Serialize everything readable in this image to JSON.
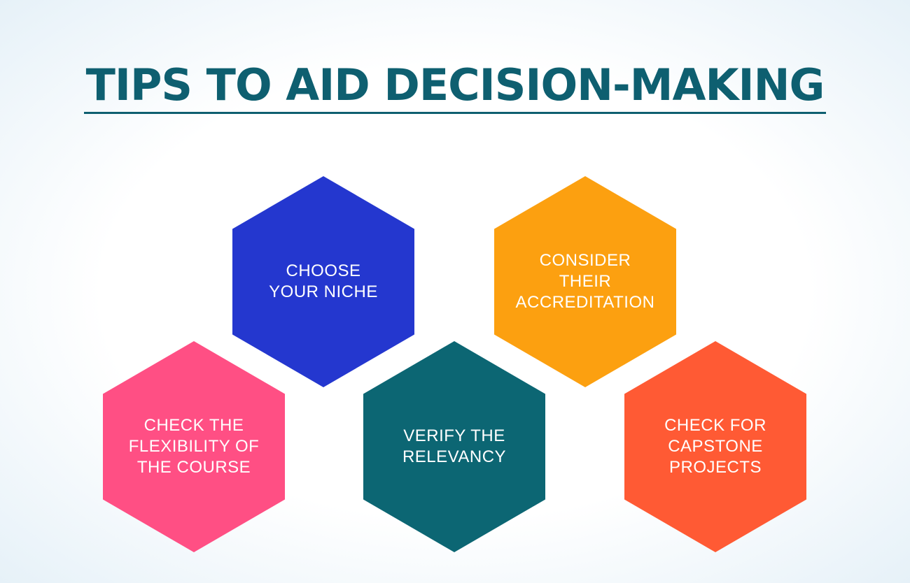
{
  "title": "TIPS TO AID DECISION-MAKING",
  "colors": {
    "title": "#0e5f70",
    "rule": "#0e5f70"
  },
  "tips": [
    {
      "label": "CHOOSE\nYOUR NICHE",
      "color": "#2437cf"
    },
    {
      "label": "CONSIDER\nTHEIR\nACCREDITATION",
      "color": "#fca010"
    },
    {
      "label": "CHECK THE\nFLEXIBILITY OF\nTHE COURSE",
      "color": "#ff4f84"
    },
    {
      "label": "VERIFY THE\nRELEVANCY",
      "color": "#0c6673"
    },
    {
      "label": "CHECK FOR\nCAPSTONE\nPROJECTS",
      "color": "#ff5a34"
    }
  ]
}
